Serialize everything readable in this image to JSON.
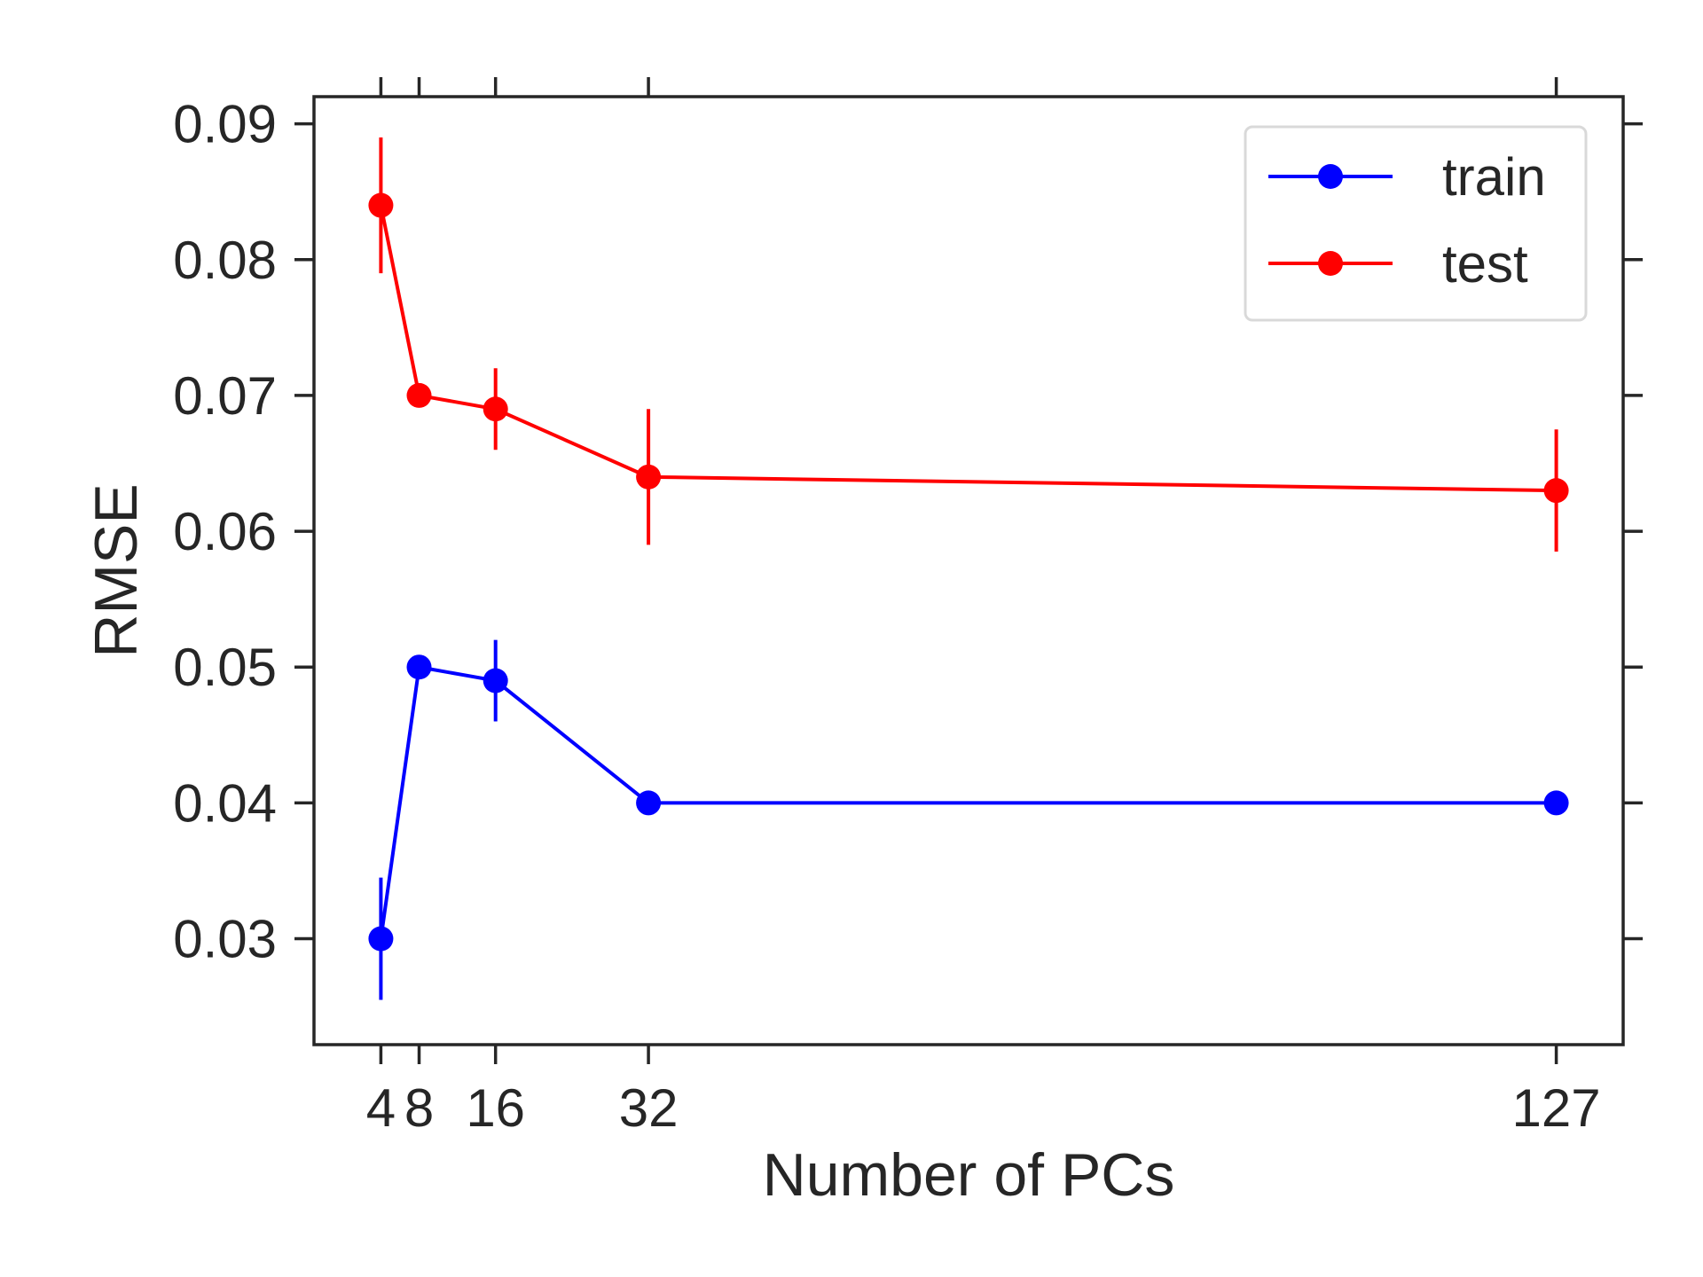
{
  "chart_data": {
    "type": "line",
    "xlabel": "Number of PCs",
    "ylabel": "RMSE",
    "x": [
      4,
      8,
      16,
      32,
      127
    ],
    "x_ticks": [
      4,
      8,
      16,
      32,
      127
    ],
    "x_tick_labels": [
      "4",
      "8",
      "16",
      "32",
      "127"
    ],
    "xlim": [
      -3,
      134
    ],
    "y_ticks": [
      0.03,
      0.04,
      0.05,
      0.06,
      0.07,
      0.08,
      0.09
    ],
    "y_tick_labels": [
      "0.03",
      "0.04",
      "0.05",
      "0.06",
      "0.07",
      "0.08",
      "0.09"
    ],
    "ylim": [
      0.0222,
      0.092
    ],
    "grid": false,
    "legend_position": "top-right",
    "series": [
      {
        "name": "train",
        "color": "#0000ff",
        "values": [
          0.03,
          0.05,
          0.049,
          0.04,
          0.04
        ],
        "errors": [
          0.0045,
          0.0,
          0.003,
          0.0,
          0.0
        ]
      },
      {
        "name": "test",
        "color": "#ff0000",
        "values": [
          0.084,
          0.07,
          0.069,
          0.064,
          0.063
        ],
        "errors": [
          0.005,
          0.0,
          0.003,
          0.005,
          0.0045
        ]
      }
    ]
  }
}
